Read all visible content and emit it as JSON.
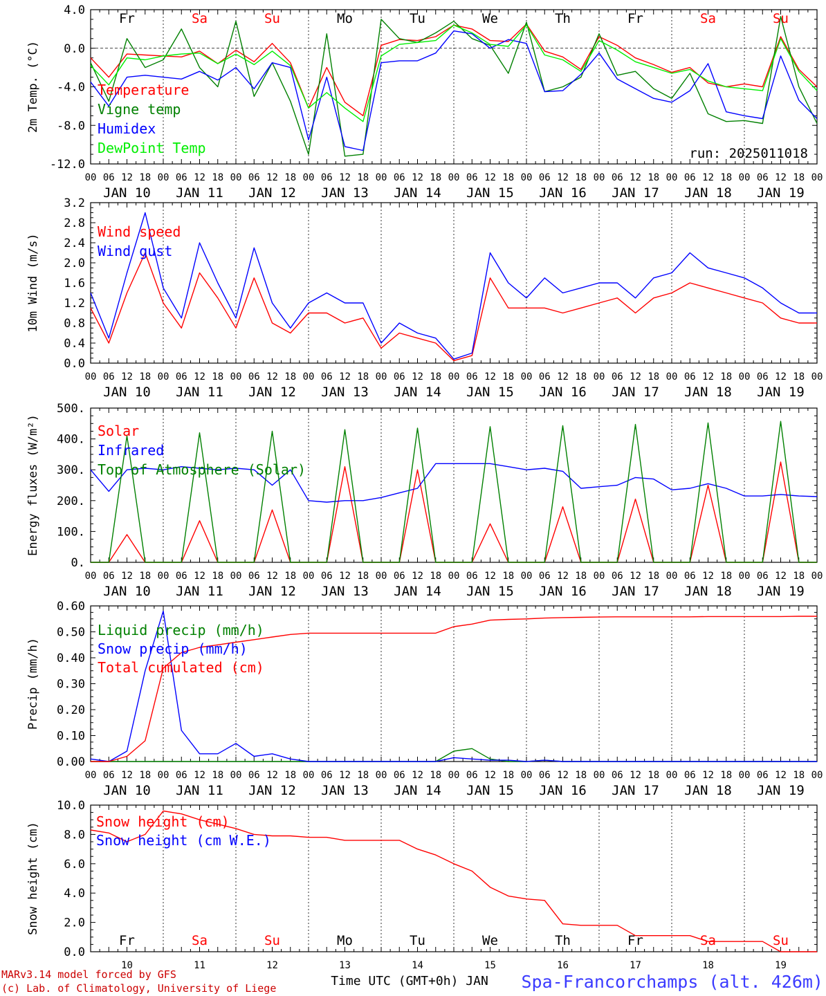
{
  "footer": {
    "model": "MARv3.14 model forced by GFS",
    "credit": "(c) Lab. of Climatology, University of Liege",
    "xlabel": "Time UTC (GMT+0h) JAN",
    "station": "Spa-Francorchamps (alt. 426m)"
  },
  "colors": {
    "red": "#ff0000",
    "green": "#008000",
    "blue": "#0000ff",
    "lightgreen": "#00ee00",
    "black": "#000000"
  },
  "time_axis": {
    "hour_ticks": [
      "00",
      "06",
      "12",
      "18"
    ],
    "dates": [
      "JAN 10",
      "JAN 11",
      "JAN 12",
      "JAN 13",
      "JAN 14",
      "JAN 15",
      "JAN 16",
      "JAN 17",
      "JAN 18",
      "JAN 19"
    ],
    "day_numbers": [
      "10",
      "11",
      "12",
      "13",
      "14",
      "15",
      "16",
      "17",
      "18",
      "19"
    ],
    "weekdays": [
      {
        "label": "Fr",
        "color": "#000000"
      },
      {
        "label": "Sa",
        "color": "#ff0000"
      },
      {
        "label": "Su",
        "color": "#ff0000"
      },
      {
        "label": "Mo",
        "color": "#000000"
      },
      {
        "label": "Tu",
        "color": "#000000"
      },
      {
        "label": "We",
        "color": "#000000"
      },
      {
        "label": "Th",
        "color": "#000000"
      },
      {
        "label": "Fr",
        "color": "#000000"
      },
      {
        "label": "Sa",
        "color": "#ff0000"
      },
      {
        "label": "Su",
        "color": "#ff0000"
      }
    ]
  },
  "chart_data": [
    {
      "type": "line",
      "ylabel": "2m Temp. (°C)",
      "ylim": [
        -12,
        4
      ],
      "yticks": [
        "4.0",
        "0.0",
        "-4.0",
        "-8.0",
        "-12.0"
      ],
      "ytick_values": [
        4,
        0,
        -4,
        -8,
        -12
      ],
      "zero_line": true,
      "annotation": "run: 2025011018",
      "x_hours": [
        0,
        6,
        12,
        18,
        24,
        30,
        36,
        42,
        48,
        54,
        60,
        66,
        72,
        78,
        84,
        90,
        96,
        102,
        108,
        114,
        120,
        126,
        132,
        138,
        144,
        150,
        156,
        162,
        168,
        174,
        180,
        186,
        192,
        198,
        204,
        210,
        216,
        222,
        228,
        234,
        240
      ],
      "series": [
        {
          "name": "Temperature",
          "color": "#ff0000",
          "values": [
            -1.0,
            -3.0,
            -0.6,
            -0.7,
            -0.8,
            -0.9,
            -0.3,
            -1.6,
            -0.2,
            -1.4,
            0.5,
            -1.5,
            -6.2,
            -2.0,
            -5.6,
            -7.0,
            0.3,
            0.9,
            0.8,
            1.2,
            2.4,
            2.0,
            0.8,
            0.7,
            2.5,
            -0.3,
            -0.9,
            -2.2,
            1.2,
            0.3,
            -1.0,
            -1.7,
            -2.5,
            -2.0,
            -3.6,
            -4.0,
            -3.7,
            -4.0,
            1.2,
            -2.2,
            -4.0
          ]
        },
        {
          "name": "Vigne temp",
          "color": "#008000",
          "values": [
            -1.5,
            -5.5,
            1.0,
            -2.0,
            -1.2,
            2.0,
            -2.0,
            -4.0,
            2.8,
            -5.0,
            -1.5,
            -5.5,
            -11.0,
            1.5,
            -11.2,
            -11.0,
            3.0,
            1.0,
            0.6,
            1.6,
            2.8,
            1.0,
            0.3,
            -2.6,
            2.7,
            -4.5,
            -4.0,
            -3.0,
            1.5,
            -2.8,
            -2.4,
            -4.2,
            -5.2,
            -2.6,
            -6.8,
            -7.6,
            -7.5,
            -7.8,
            3.3,
            -4.0,
            -7.8
          ]
        },
        {
          "name": "Humidex",
          "color": "#0000ff",
          "values": [
            -3.5,
            -6.0,
            -3.0,
            -2.8,
            -3.0,
            -3.2,
            -2.4,
            -3.3,
            -2.0,
            -4.2,
            -1.5,
            -2.0,
            -9.5,
            -3.0,
            -10.2,
            -10.6,
            -1.5,
            -1.3,
            -1.3,
            -0.5,
            1.8,
            1.5,
            0.0,
            0.9,
            0.5,
            -4.5,
            -4.4,
            -2.7,
            -0.5,
            -3.2,
            -4.2,
            -5.2,
            -5.6,
            -4.4,
            -1.6,
            -6.6,
            -7.0,
            -7.3,
            -0.8,
            -5.4,
            -7.3
          ]
        },
        {
          "name": "DewPoint Temp",
          "color": "#00ee00",
          "values": [
            -1.8,
            -3.8,
            -1.0,
            -1.2,
            -0.8,
            -0.6,
            -0.5,
            -1.6,
            -0.6,
            -1.7,
            -0.3,
            -1.8,
            -6.2,
            -4.6,
            -6.2,
            -7.6,
            -0.8,
            0.4,
            0.6,
            0.8,
            2.4,
            1.6,
            0.4,
            0.2,
            2.4,
            -0.7,
            -1.2,
            -2.4,
            0.8,
            -0.2,
            -1.4,
            -2.0,
            -2.6,
            -2.2,
            -3.4,
            -4.0,
            -4.2,
            -4.4,
            1.0,
            -2.4,
            -4.4
          ]
        }
      ]
    },
    {
      "type": "line",
      "ylabel": "10m Wind (m/s)",
      "ylim": [
        0,
        3.2
      ],
      "yticks": [
        "3.2",
        "2.8",
        "2.4",
        "2.0",
        "1.6",
        "1.2",
        "0.8",
        "0.4",
        "0.0"
      ],
      "ytick_values": [
        3.2,
        2.8,
        2.4,
        2.0,
        1.6,
        1.2,
        0.8,
        0.4,
        0.0
      ],
      "x_hours": [
        0,
        6,
        12,
        18,
        24,
        30,
        36,
        42,
        48,
        54,
        60,
        66,
        72,
        78,
        84,
        90,
        96,
        102,
        108,
        114,
        120,
        126,
        132,
        138,
        144,
        150,
        156,
        162,
        168,
        174,
        180,
        186,
        192,
        198,
        204,
        210,
        216,
        222,
        228,
        234,
        240
      ],
      "series": [
        {
          "name": "Wind speed",
          "color": "#ff0000",
          "values": [
            1.1,
            0.4,
            1.4,
            2.2,
            1.2,
            0.7,
            1.8,
            1.3,
            0.7,
            1.7,
            0.8,
            0.6,
            1.0,
            1.0,
            0.8,
            0.9,
            0.3,
            0.6,
            0.5,
            0.4,
            0.05,
            0.15,
            1.7,
            1.1,
            1.1,
            1.1,
            1.0,
            1.1,
            1.2,
            1.3,
            1.0,
            1.3,
            1.4,
            1.6,
            1.5,
            1.4,
            1.3,
            1.2,
            0.9,
            0.8,
            0.8
          ]
        },
        {
          "name": "Wind gust",
          "color": "#0000ff",
          "values": [
            1.4,
            0.5,
            1.8,
            3.0,
            1.5,
            0.9,
            2.4,
            1.6,
            0.9,
            2.3,
            1.2,
            0.7,
            1.2,
            1.4,
            1.2,
            1.2,
            0.4,
            0.8,
            0.6,
            0.5,
            0.08,
            0.2,
            2.2,
            1.6,
            1.3,
            1.7,
            1.4,
            1.5,
            1.6,
            1.6,
            1.3,
            1.7,
            1.8,
            2.2,
            1.9,
            1.8,
            1.7,
            1.5,
            1.2,
            1.0,
            1.0
          ]
        }
      ]
    },
    {
      "type": "line",
      "ylabel": "Energy fluxes (W/m²)",
      "ylim": [
        0,
        500
      ],
      "yticks": [
        "500.",
        "400.",
        "300.",
        "200.",
        "100.",
        "0."
      ],
      "ytick_values": [
        500,
        400,
        300,
        200,
        100,
        0
      ],
      "x_hours": [
        0,
        6,
        12,
        18,
        24,
        30,
        36,
        42,
        48,
        54,
        60,
        66,
        72,
        78,
        84,
        90,
        96,
        102,
        108,
        114,
        120,
        126,
        132,
        138,
        144,
        150,
        156,
        162,
        168,
        174,
        180,
        186,
        192,
        198,
        204,
        210,
        216,
        222,
        228,
        234,
        240
      ],
      "series": [
        {
          "name": "Solar",
          "color": "#ff0000",
          "values": [
            0,
            0,
            90,
            0,
            0,
            0,
            135,
            0,
            0,
            0,
            170,
            0,
            0,
            0,
            310,
            0,
            0,
            0,
            300,
            0,
            0,
            0,
            125,
            0,
            0,
            0,
            180,
            0,
            0,
            0,
            205,
            0,
            0,
            0,
            250,
            0,
            0,
            0,
            325,
            0,
            0
          ]
        },
        {
          "name": "Infrared",
          "color": "#0000ff",
          "values": [
            300,
            230,
            300,
            305,
            300,
            310,
            305,
            300,
            305,
            300,
            250,
            300,
            200,
            195,
            200,
            200,
            210,
            225,
            240,
            320,
            320,
            320,
            320,
            310,
            300,
            305,
            295,
            240,
            245,
            250,
            275,
            270,
            235,
            240,
            255,
            240,
            215,
            215,
            220,
            215,
            213
          ]
        },
        {
          "name": "Top of Atmosphere (Solar)",
          "color": "#008000",
          "values": [
            0,
            0,
            410,
            0,
            0,
            0,
            420,
            0,
            0,
            0,
            425,
            0,
            0,
            0,
            430,
            0,
            0,
            0,
            435,
            0,
            0,
            0,
            440,
            0,
            0,
            0,
            443,
            0,
            0,
            0,
            447,
            0,
            0,
            0,
            452,
            0,
            0,
            0,
            457,
            0,
            0
          ]
        }
      ]
    },
    {
      "type": "line",
      "ylabel": "Precip (mm/h)",
      "ylim": [
        0,
        0.6
      ],
      "yticks": [
        "0.60",
        "0.50",
        "0.40",
        "0.30",
        "0.20",
        "0.10",
        "0.00"
      ],
      "ytick_values": [
        0.6,
        0.5,
        0.4,
        0.3,
        0.2,
        0.1,
        0.0
      ],
      "x_hours": [
        0,
        6,
        12,
        18,
        24,
        30,
        36,
        42,
        48,
        54,
        60,
        66,
        72,
        78,
        84,
        90,
        96,
        102,
        108,
        114,
        120,
        126,
        132,
        138,
        144,
        150,
        156,
        162,
        168,
        174,
        180,
        186,
        192,
        198,
        204,
        210,
        216,
        222,
        228,
        234,
        240
      ],
      "series": [
        {
          "name": "Liquid precip (mm/h)",
          "color": "#008000",
          "values": [
            0,
            0,
            0,
            0,
            0,
            0,
            0,
            0,
            0,
            0,
            0,
            0,
            0,
            0,
            0,
            0,
            0,
            0,
            0,
            0,
            0.04,
            0.05,
            0.01,
            0,
            0,
            0.005,
            0,
            0,
            0,
            0,
            0,
            0,
            0,
            0,
            0,
            0,
            0,
            0,
            0,
            0,
            0
          ]
        },
        {
          "name": "Snow precip (mm/h)",
          "color": "#0000ff",
          "values": [
            0.01,
            0,
            0.04,
            0.35,
            0.58,
            0.12,
            0.03,
            0.03,
            0.07,
            0.02,
            0.03,
            0.01,
            0,
            0,
            0,
            0,
            0,
            0,
            0,
            0,
            0.015,
            0.01,
            0.005,
            0.005,
            0,
            0.005,
            0,
            0,
            0,
            0,
            0,
            0,
            0,
            0,
            0,
            0,
            0,
            0,
            0,
            0,
            0
          ]
        },
        {
          "name": "Total cumulated (cm)",
          "color": "#ff0000",
          "values": [
            0,
            0,
            0.02,
            0.08,
            0.36,
            0.42,
            0.44,
            0.45,
            0.46,
            0.47,
            0.48,
            0.49,
            0.495,
            0.495,
            0.495,
            0.495,
            0.495,
            0.495,
            0.495,
            0.495,
            0.52,
            0.53,
            0.545,
            0.548,
            0.55,
            0.553,
            0.555,
            0.556,
            0.557,
            0.558,
            0.558,
            0.558,
            0.558,
            0.558,
            0.559,
            0.559,
            0.559,
            0.559,
            0.559,
            0.56,
            0.56
          ]
        }
      ]
    },
    {
      "type": "line",
      "ylabel": "Snow height (cm)",
      "ylim": [
        0,
        10
      ],
      "yticks": [
        "10.0",
        "8.0",
        "6.0",
        "4.0",
        "2.0",
        "0.0"
      ],
      "ytick_values": [
        10,
        8,
        6,
        4,
        2,
        0
      ],
      "x_hours": [
        0,
        6,
        12,
        18,
        24,
        30,
        36,
        42,
        48,
        54,
        60,
        66,
        72,
        78,
        84,
        90,
        96,
        102,
        108,
        114,
        120,
        126,
        132,
        138,
        144,
        150,
        156,
        162,
        168,
        174,
        180,
        186,
        192,
        198,
        204,
        210,
        216,
        222,
        228,
        234,
        240
      ],
      "series": [
        {
          "name": "Snow height (cm)",
          "color": "#ff0000",
          "values": [
            8.3,
            8.1,
            7.5,
            8.0,
            9.6,
            9.4,
            9.0,
            8.7,
            8.4,
            8.0,
            7.9,
            7.9,
            7.8,
            7.8,
            7.6,
            7.6,
            7.6,
            7.6,
            7.0,
            6.6,
            6.0,
            5.5,
            4.4,
            3.8,
            3.6,
            3.5,
            1.9,
            1.8,
            1.8,
            1.8,
            1.1,
            1.1,
            1.1,
            1.1,
            0.7,
            0.7,
            0.7,
            0.7,
            0.0,
            0.0,
            0.0
          ]
        },
        {
          "name": "Snow height (cm W.E.)",
          "color": "#0000ff",
          "values": []
        }
      ]
    }
  ]
}
